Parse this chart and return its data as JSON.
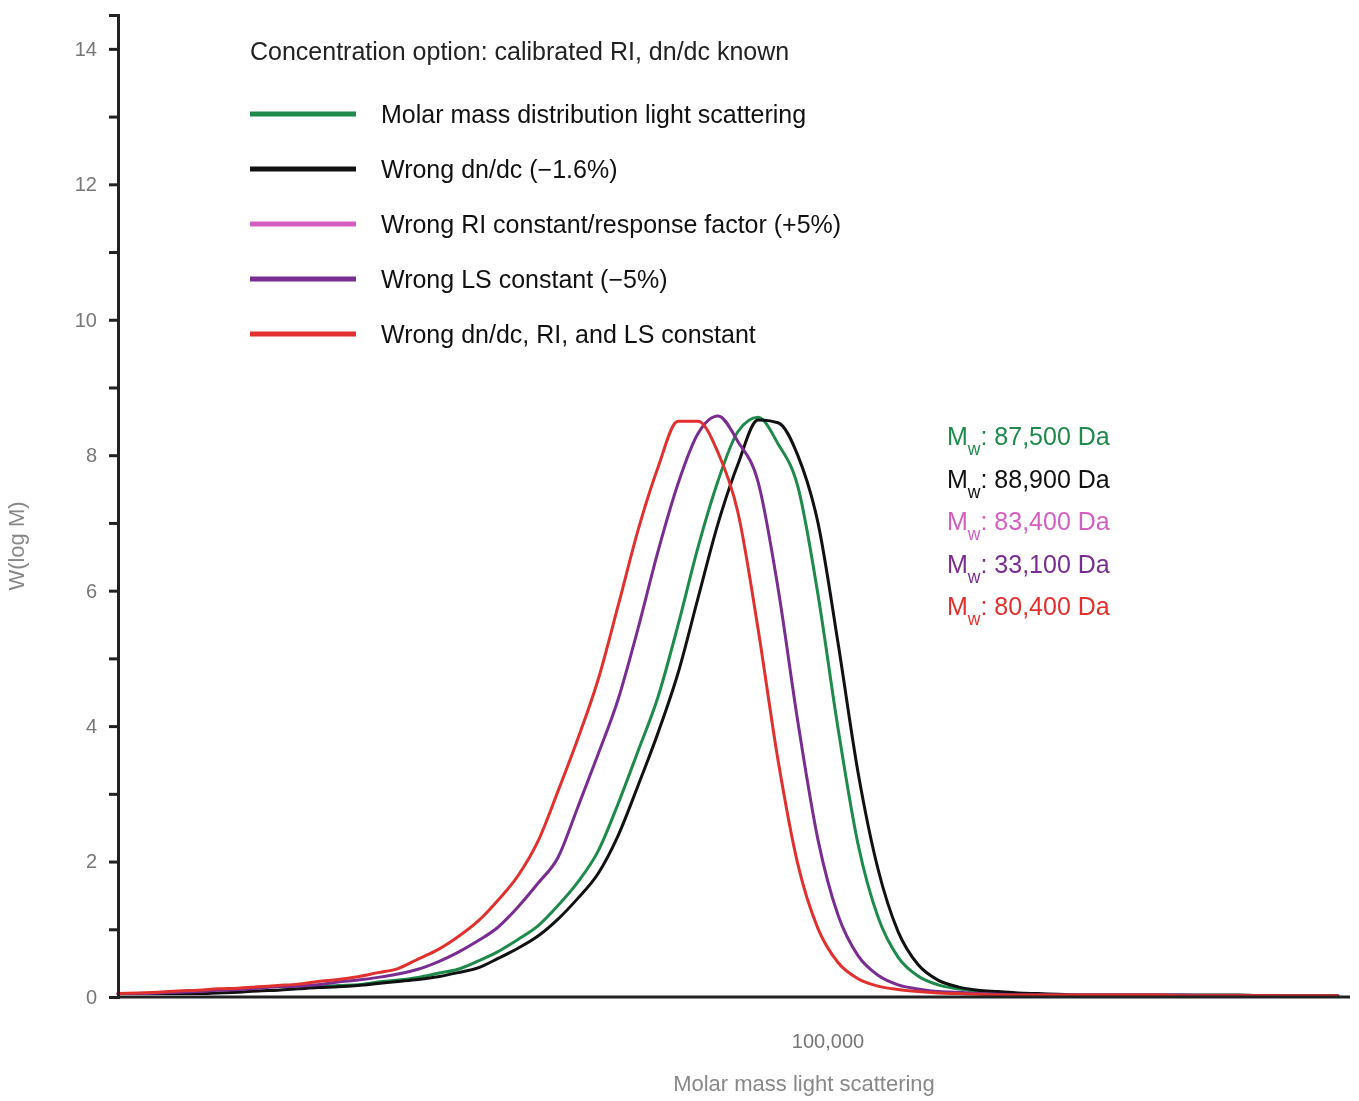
{
  "chart_data": {
    "type": "line",
    "xlabel": "Molar mass light scattering",
    "ylabel": "W(log M)",
    "legend_title": "Concentration option: calibrated RI, dn/dc known",
    "ylim": [
      0,
      14.5
    ],
    "categories": [
      null,
      null,
      null,
      null,
      null,
      null,
      null,
      null,
      null,
      null,
      null,
      null,
      null,
      null,
      null,
      null,
      null,
      null,
      null,
      null,
      null,
      null,
      null,
      null,
      null,
      null,
      null,
      null,
      null,
      null,
      null,
      null,
      null,
      null,
      null,
      null,
      null,
      null,
      null,
      null,
      null,
      null,
      null,
      null,
      null,
      null,
      null,
      null,
      null,
      null,
      null,
      null,
      null,
      null,
      null,
      null,
      null,
      null,
      null,
      null,
      null,
      null
    ],
    "yticks": [
      0,
      {
        "value": 1,
        "label": null
      },
      2,
      {
        "value": 3,
        "label": null
      },
      4,
      {
        "value": 5,
        "label": null
      },
      6,
      {
        "value": 7,
        "label": null
      },
      8,
      {
        "value": 9,
        "label": null
      },
      10,
      {
        "value": 11,
        "label": null
      },
      12,
      {
        "value": 13,
        "label": null
      },
      14
    ],
    "grid": false,
    "legend": "top left",
    "marker": "none",
    "line_style": "solid",
    "annotations": [
      "M$_{w}$: 87,500 Da",
      "M$_{w}$: 88,900 Da",
      "M$_{w}$: 83,400 Da",
      "M$_{w}$: 33,100 Da",
      "M$_{w}$: 80,400 Da",
      "100,000"
    ],
    "series": [
      {
        "name": "Molar mass distribution light scattering",
        "color": "#1e8a4c",
        "values": [
          null,
          null,
          null,
          null,
          null,
          null,
          null,
          null,
          null,
          0.13,
          0.15,
          0.17,
          0.18,
          0.22,
          0.25,
          0.29,
          0.35,
          0.41,
          0.53,
          0.67,
          0.85,
          1.05,
          1.35,
          1.7,
          2.15,
          2.85,
          3.63,
          4.43,
          5.49,
          6.64,
          7.62,
          8.35,
          8.56,
          8.17,
          7.53,
          5.94,
          3.97,
          2.26,
          1.18,
          0.59,
          0.31,
          0.18,
          0.12,
          0.08,
          0.06,
          null,
          null,
          null,
          null,
          null,
          null,
          null,
          null,
          null,
          null,
          null,
          null,
          null,
          null,
          null,
          null,
          null
        ]
      },
      {
        "name": "Wrong dn/dc (−1.6%)",
        "color": "#111111",
        "values": [
          0.05,
          0.05,
          0.05,
          0.05,
          0.05,
          0.06,
          0.07,
          0.09,
          0.1,
          0.12,
          0.14,
          0.15,
          0.17,
          0.2,
          0.23,
          0.26,
          0.3,
          0.36,
          0.43,
          0.57,
          0.72,
          0.9,
          1.15,
          1.46,
          1.82,
          2.38,
          3.12,
          3.9,
          4.78,
          5.89,
          6.99,
          7.87,
          8.52,
          8.48,
          7.99,
          7.0,
          5.23,
          3.32,
          1.89,
          0.97,
          0.48,
          0.25,
          0.15,
          0.1,
          0.08,
          0.06,
          0.05,
          0.04,
          0.03,
          0.03,
          0.03,
          0.03,
          0.03,
          0.03,
          0.03,
          0.03,
          0.03,
          0.02,
          0.02,
          0.02,
          0.02,
          0.02
        ]
      },
      {
        "name": "Wrong RI constant/response factor (+5%)",
        "color": "#d45fc0",
        "values": [
          null,
          null,
          null,
          null,
          null,
          null,
          null,
          null,
          null,
          null,
          null,
          null,
          null,
          null,
          null,
          null,
          null,
          null,
          null,
          null,
          null,
          null,
          null,
          null,
          null,
          null,
          null,
          null,
          null,
          null,
          null,
          null,
          null,
          null,
          null,
          null,
          null,
          null,
          null,
          null,
          null,
          null,
          null,
          null,
          null,
          null,
          null,
          null,
          null,
          null,
          null,
          null,
          null,
          null,
          null,
          null,
          null,
          null,
          null,
          null,
          null,
          null
        ]
      },
      {
        "name": "Wrong LS constant (−5%)",
        "color": "#7a2d91",
        "values": [
          0.05,
          0.05,
          0.06,
          0.07,
          0.08,
          0.1,
          0.11,
          0.13,
          0.15,
          0.16,
          0.18,
          0.22,
          0.25,
          0.29,
          0.34,
          0.41,
          0.52,
          0.66,
          0.83,
          1.03,
          1.33,
          1.68,
          2.06,
          2.81,
          3.58,
          4.39,
          5.44,
          6.58,
          7.58,
          8.32,
          8.58,
          8.2,
          7.61,
          6.04,
          4.05,
          2.32,
          1.21,
          0.61,
          0.32,
          0.18,
          0.12,
          0.08,
          0.07,
          0.05,
          0.04,
          0.03,
          0.03,
          0.03,
          0.03,
          0.03,
          0.03,
          0.03,
          0.03,
          0.03,
          0.02,
          0.02,
          0.02,
          0.02,
          0.02,
          null,
          null,
          null
        ]
      },
      {
        "name": "Wrong dn/dc, RI, and LS constant",
        "color": "#e0312f",
        "values": [
          0.05,
          0.06,
          0.07,
          0.09,
          0.1,
          0.12,
          0.13,
          0.15,
          0.17,
          0.19,
          0.23,
          0.26,
          0.3,
          0.36,
          0.42,
          0.56,
          0.7,
          0.89,
          1.12,
          1.43,
          1.79,
          2.3,
          3.04,
          3.82,
          4.68,
          5.77,
          6.89,
          7.82,
          8.5,
          8.5,
          8.04,
          7.15,
          5.44,
          3.5,
          1.95,
          1.01,
          0.51,
          0.27,
          0.16,
          0.11,
          0.08,
          0.06,
          0.05,
          0.04,
          0.03,
          0.03,
          0.03,
          0.03,
          0.03,
          0.03,
          0.03,
          0.03,
          0.03,
          0.02,
          0.02,
          0.02,
          0.02,
          0.02,
          0.02,
          0.02,
          0.02,
          0.02
        ]
      }
    ]
  }
}
